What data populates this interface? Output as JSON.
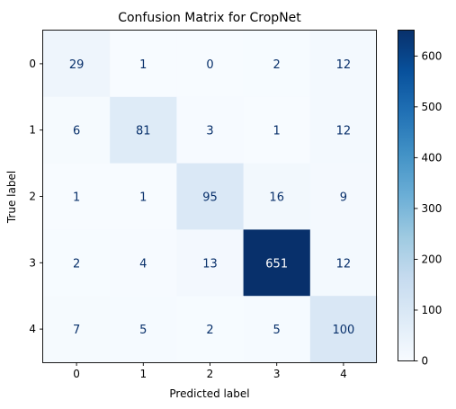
{
  "chart_data": {
    "type": "heatmap",
    "title": "Confusion Matrix for CropNet",
    "xlabel": "Predicted label",
    "ylabel": "True label",
    "x_categories": [
      "0",
      "1",
      "2",
      "3",
      "4"
    ],
    "y_categories": [
      "0",
      "1",
      "2",
      "3",
      "4"
    ],
    "matrix": [
      [
        29,
        1,
        0,
        2,
        12
      ],
      [
        6,
        81,
        3,
        1,
        12
      ],
      [
        1,
        1,
        95,
        16,
        9
      ],
      [
        2,
        4,
        13,
        651,
        12
      ],
      [
        7,
        5,
        2,
        5,
        100
      ]
    ],
    "colormap": "Blues",
    "colorbar": {
      "min": 0,
      "max": 651,
      "ticks": [
        0,
        100,
        200,
        300,
        400,
        500,
        600
      ]
    },
    "grid": false,
    "legend": "colorbar-right"
  }
}
